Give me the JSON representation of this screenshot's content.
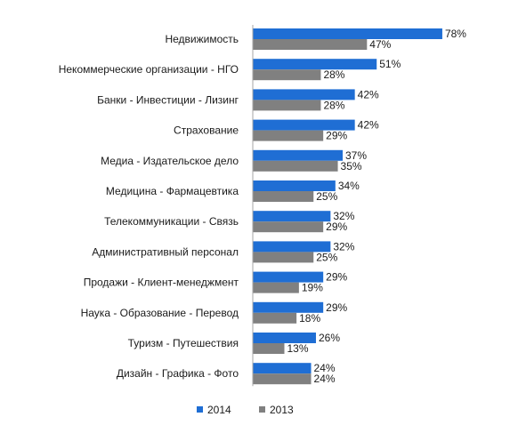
{
  "chart_data": {
    "type": "bar",
    "orientation": "horizontal",
    "title": "",
    "xlabel": "",
    "ylabel": "",
    "categories": [
      "Недвижимость",
      "Некоммерческие организации - НГО",
      "Банки - Инвестиции - Лизинг",
      "Страхование",
      "Медиа - Издательское дело",
      "Медицина - Фармацевтика",
      "Телекоммуникации - Связь",
      "Административный персонал",
      "Продажи - Клиент-менеджмент",
      "Наука - Образование - Перевод",
      "Туризм - Путешествия",
      "Дизайн - Графика - Фото"
    ],
    "series": [
      {
        "name": "2014",
        "color": "#1F6ED4",
        "values": [
          78,
          51,
          42,
          42,
          37,
          34,
          32,
          32,
          29,
          29,
          26,
          24
        ],
        "labels": [
          "78%",
          "51%",
          "42%",
          "42%",
          "37%",
          "34%",
          "32%",
          "32%",
          "29%",
          "29%",
          "26%",
          "24%"
        ]
      },
      {
        "name": "2013",
        "color": "#808080",
        "values": [
          47,
          28,
          28,
          29,
          35,
          25,
          29,
          25,
          19,
          18,
          13,
          24
        ],
        "labels": [
          "47%",
          "28%",
          "28%",
          "29%",
          "35%",
          "25%",
          "29%",
          "25%",
          "19%",
          "18%",
          "13%",
          "24%"
        ]
      }
    ],
    "xlim": [
      0,
      100
    ],
    "grid": false,
    "legend_position": "bottom"
  }
}
